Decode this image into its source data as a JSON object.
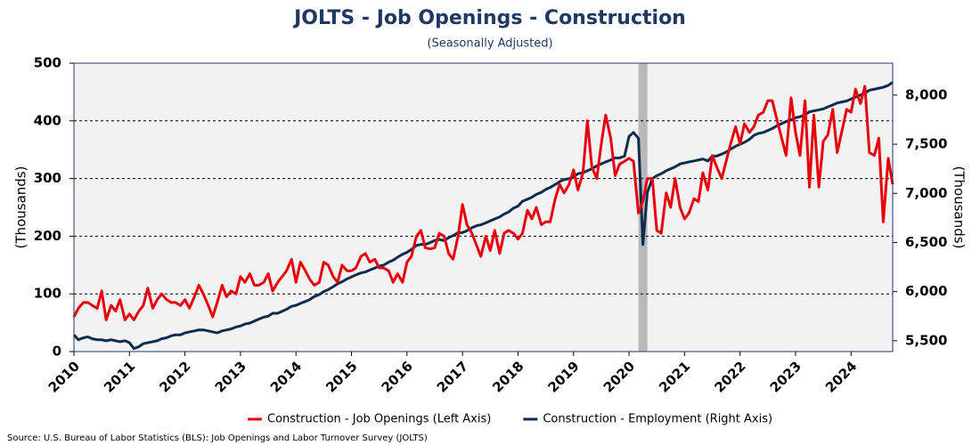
{
  "chart_data": {
    "type": "line",
    "title": "JOLTS - Job Openings - Construction",
    "subtitle": "(Seasonally Adjusted)",
    "y_label": "(Thousands)",
    "y2_label": "(Thousands)",
    "source": "Source: U.S. Bureau of Labor Statistics (BLS): Job Openings and Labor Turnover Survey (JOLTS)",
    "x": [
      2010,
      2010.08,
      2010.17,
      2010.25,
      2010.33,
      2010.42,
      2010.5,
      2010.58,
      2010.67,
      2010.75,
      2010.83,
      2010.92,
      2011,
      2011.08,
      2011.17,
      2011.25,
      2011.33,
      2011.42,
      2011.5,
      2011.58,
      2011.67,
      2011.75,
      2011.83,
      2011.92,
      2012,
      2012.08,
      2012.17,
      2012.25,
      2012.33,
      2012.42,
      2012.5,
      2012.58,
      2012.67,
      2012.75,
      2012.83,
      2012.92,
      2013,
      2013.08,
      2013.17,
      2013.25,
      2013.33,
      2013.42,
      2013.5,
      2013.58,
      2013.67,
      2013.75,
      2013.83,
      2013.92,
      2014,
      2014.08,
      2014.17,
      2014.25,
      2014.33,
      2014.42,
      2014.5,
      2014.58,
      2014.67,
      2014.75,
      2014.83,
      2014.92,
      2015,
      2015.08,
      2015.17,
      2015.25,
      2015.33,
      2015.42,
      2015.5,
      2015.58,
      2015.67,
      2015.75,
      2015.83,
      2015.92,
      2016,
      2016.08,
      2016.17,
      2016.25,
      2016.33,
      2016.42,
      2016.5,
      2016.58,
      2016.67,
      2016.75,
      2016.83,
      2016.92,
      2017,
      2017.08,
      2017.17,
      2017.25,
      2017.33,
      2017.42,
      2017.5,
      2017.58,
      2017.67,
      2017.75,
      2017.83,
      2017.92,
      2018,
      2018.08,
      2018.17,
      2018.25,
      2018.33,
      2018.42,
      2018.5,
      2018.58,
      2018.67,
      2018.75,
      2018.83,
      2018.92,
      2019,
      2019.08,
      2019.17,
      2019.25,
      2019.33,
      2019.42,
      2019.5,
      2019.58,
      2019.67,
      2019.75,
      2019.83,
      2019.92,
      2020,
      2020.08,
      2020.17,
      2020.25,
      2020.33,
      2020.42,
      2020.5,
      2020.58,
      2020.67,
      2020.75,
      2020.83,
      2020.92,
      2021,
      2021.08,
      2021.17,
      2021.25,
      2021.33,
      2021.42,
      2021.5,
      2021.58,
      2021.67,
      2021.75,
      2021.83,
      2021.92,
      2022,
      2022.08,
      2022.17,
      2022.25,
      2022.33,
      2022.42,
      2022.5,
      2022.58,
      2022.67,
      2022.75,
      2022.83,
      2022.92,
      2023,
      2023.08,
      2023.17,
      2023.25,
      2023.33,
      2023.42,
      2023.5,
      2023.58,
      2023.67,
      2023.75,
      2023.83,
      2023.92,
      2024,
      2024.08,
      2024.17,
      2024.25,
      2024.33,
      2024.42,
      2024.5,
      2024.58,
      2024.67,
      2024.75
    ],
    "series": [
      {
        "name": "Construction - Job Openings (Left Axis)",
        "color": "#e8000b",
        "axis": "y",
        "values": [
          60,
          75,
          85,
          85,
          80,
          75,
          105,
          55,
          80,
          70,
          90,
          55,
          65,
          55,
          70,
          80,
          110,
          75,
          90,
          100,
          90,
          85,
          85,
          80,
          90,
          75,
          95,
          115,
          100,
          80,
          60,
          85,
          115,
          95,
          105,
          100,
          130,
          120,
          135,
          115,
          115,
          120,
          135,
          105,
          120,
          130,
          140,
          160,
          120,
          155,
          140,
          125,
          115,
          120,
          155,
          150,
          130,
          120,
          150,
          140,
          140,
          145,
          165,
          170,
          155,
          160,
          145,
          145,
          140,
          120,
          135,
          120,
          155,
          165,
          200,
          210,
          180,
          178,
          180,
          205,
          200,
          170,
          160,
          200,
          255,
          220,
          205,
          185,
          165,
          200,
          175,
          210,
          170,
          205,
          210,
          205,
          195,
          205,
          245,
          230,
          250,
          220,
          225,
          225,
          265,
          290,
          275,
          290,
          315,
          280,
          310,
          400,
          320,
          300,
          360,
          410,
          370,
          305,
          325,
          330,
          335,
          330,
          240,
          260,
          300,
          300,
          210,
          205,
          275,
          250,
          300,
          250,
          230,
          240,
          265,
          260,
          310,
          280,
          340,
          320,
          300,
          330,
          360,
          390,
          360,
          395,
          380,
          390,
          410,
          415,
          435,
          435,
          400,
          370,
          340,
          440,
          380,
          340,
          435,
          285,
          410,
          285,
          365,
          375,
          420,
          345,
          380,
          420,
          415,
          455,
          430,
          460,
          345,
          340,
          370,
          225,
          335,
          290
        ]
      },
      {
        "name": "Construction - Employment (Right Axis)",
        "color": "#0d2d4f",
        "axis": "y2",
        "values": [
          5560,
          5510,
          5530,
          5540,
          5520,
          5510,
          5510,
          5500,
          5510,
          5500,
          5490,
          5500,
          5480,
          5420,
          5440,
          5470,
          5480,
          5490,
          5500,
          5520,
          5530,
          5550,
          5560,
          5560,
          5580,
          5590,
          5600,
          5610,
          5610,
          5600,
          5590,
          5580,
          5600,
          5610,
          5620,
          5640,
          5650,
          5670,
          5680,
          5700,
          5720,
          5740,
          5750,
          5780,
          5780,
          5800,
          5820,
          5850,
          5860,
          5880,
          5900,
          5920,
          5950,
          5970,
          6000,
          6020,
          6050,
          6080,
          6100,
          6130,
          6150,
          6170,
          6190,
          6200,
          6220,
          6240,
          6260,
          6270,
          6300,
          6320,
          6350,
          6380,
          6400,
          6430,
          6470,
          6480,
          6480,
          6500,
          6520,
          6530,
          6520,
          6550,
          6570,
          6600,
          6600,
          6620,
          6650,
          6670,
          6680,
          6700,
          6720,
          6740,
          6760,
          6790,
          6810,
          6850,
          6870,
          6920,
          6940,
          6960,
          6990,
          7010,
          7040,
          7060,
          7090,
          7120,
          7140,
          7150,
          7170,
          7200,
          7210,
          7230,
          7250,
          7280,
          7300,
          7320,
          7340,
          7360,
          7360,
          7380,
          7580,
          7620,
          7560,
          6480,
          7010,
          7150,
          7180,
          7200,
          7230,
          7250,
          7270,
          7300,
          7310,
          7320,
          7330,
          7340,
          7350,
          7330,
          7380,
          7380,
          7400,
          7420,
          7450,
          7480,
          7500,
          7520,
          7550,
          7590,
          7610,
          7620,
          7640,
          7660,
          7690,
          7710,
          7730,
          7750,
          7770,
          7780,
          7800,
          7830,
          7840,
          7850,
          7860,
          7880,
          7900,
          7920,
          7930,
          7940,
          7960,
          7980,
          8000,
          8020,
          8050,
          8060,
          8070,
          8080,
          8100,
          8130
        ]
      }
    ],
    "shaded_x": [
      2020.17,
      2020.33
    ],
    "xlim": [
      2010,
      2024.75
    ],
    "xticks": [
      2010,
      2011,
      2012,
      2013,
      2014,
      2015,
      2016,
      2017,
      2018,
      2019,
      2020,
      2021,
      2022,
      2023,
      2024
    ],
    "ylim": [
      0,
      500
    ],
    "yticks": [
      0,
      100,
      200,
      300,
      400,
      500
    ],
    "y2lim": [
      5390,
      8325
    ],
    "y2ticks": [
      {
        "value": 5500,
        "label": "5,500"
      },
      {
        "value": 6000,
        "label": "6,000"
      },
      {
        "value": 6500,
        "label": "6,500"
      },
      {
        "value": 7000,
        "label": "7,000"
      },
      {
        "value": 7500,
        "label": "7,500"
      },
      {
        "value": 8000,
        "label": "8,000"
      }
    ],
    "grid": true,
    "legend": "bottom"
  }
}
